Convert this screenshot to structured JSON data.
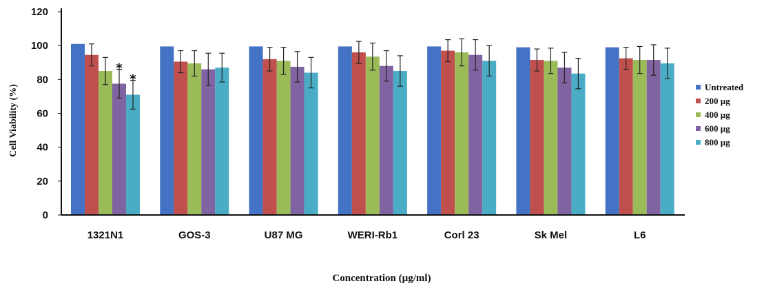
{
  "chart_data": {
    "type": "bar",
    "title": "",
    "xlabel": "Concentration (µg/ml)",
    "ylabel": "Cell Viability (%)",
    "ylim": [
      0,
      120
    ],
    "yticks": [
      0,
      20,
      40,
      60,
      80,
      100,
      120
    ],
    "grid": false,
    "legend_position": "right",
    "categories": [
      "1321N1",
      "GOS-3",
      "U87 MG",
      "WERI-Rb1",
      "Corl 23",
      "Sk Mel",
      "L6"
    ],
    "series": [
      {
        "name": "Untreated",
        "color": "#4472C4",
        "values": [
          101,
          99.5,
          99.5,
          99.5,
          99.5,
          99,
          99
        ],
        "errors": [
          0,
          0,
          0,
          0,
          0,
          0,
          0
        ]
      },
      {
        "name": "200 µg",
        "color": "#C0504D",
        "values": [
          94.5,
          90.5,
          92,
          96,
          97,
          91.5,
          92.5
        ],
        "errors": [
          6.5,
          6.5,
          7,
          6.5,
          6.5,
          6.5,
          6.5
        ]
      },
      {
        "name": "400 µg",
        "color": "#9BBB59",
        "values": [
          85,
          89.5,
          91,
          93.5,
          96,
          91,
          91.5
        ],
        "errors": [
          8,
          7.5,
          8,
          8,
          8,
          7.5,
          8
        ]
      },
      {
        "name": "600 µg",
        "color": "#8064A2",
        "values": [
          77.5,
          86,
          87.5,
          88,
          94.5,
          87,
          91.5
        ],
        "errors": [
          8.5,
          9.5,
          9,
          9,
          9,
          9,
          9
        ]
      },
      {
        "name": "800 µg",
        "color": "#4BACC6",
        "values": [
          71,
          87,
          84,
          85,
          91,
          83.5,
          89.5
        ],
        "errors": [
          8.5,
          8.5,
          9,
          9,
          9,
          9,
          9
        ]
      }
    ],
    "annotations": [
      {
        "category": "1321N1",
        "series": "600 µg",
        "text": "*"
      },
      {
        "category": "1321N1",
        "series": "800 µg",
        "text": "*"
      }
    ]
  }
}
